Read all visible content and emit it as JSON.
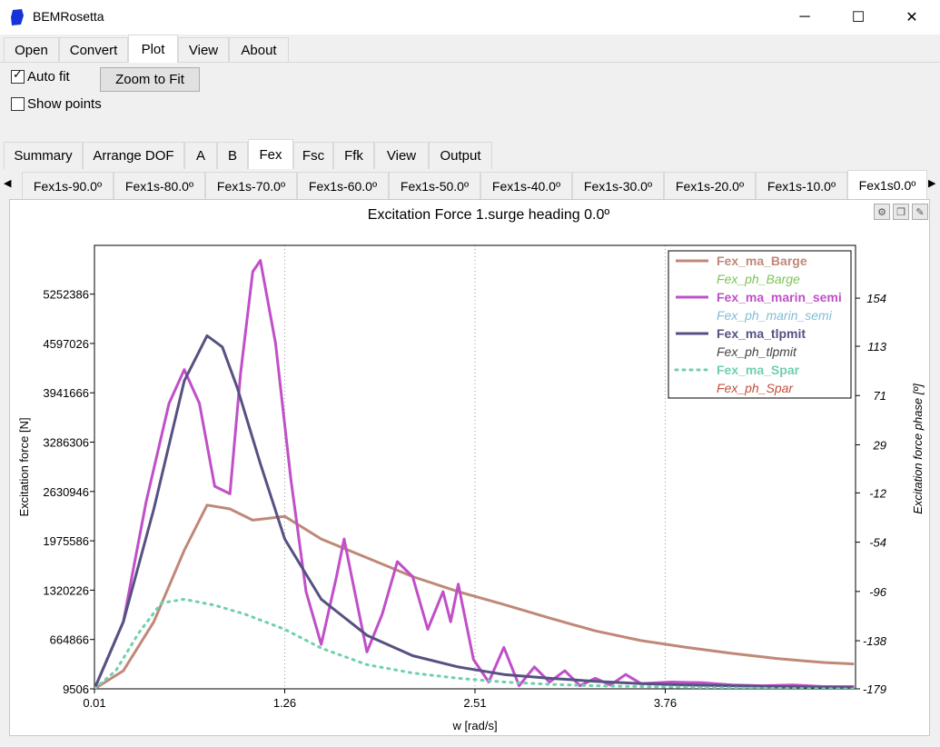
{
  "window": {
    "title": "BEMRosetta",
    "minimize": "─",
    "maximize": "☐",
    "close": "✕"
  },
  "menu": {
    "tabs": [
      "Open",
      "Convert",
      "Plot",
      "View",
      "About"
    ],
    "active": "Plot"
  },
  "options": {
    "auto_fit_label": "Auto fit",
    "auto_fit_checked": true,
    "show_points_label": "Show points",
    "show_points_checked": false,
    "zoom_button": "Zoom to Fit"
  },
  "tabs2": {
    "items": [
      "Summary",
      "Arrange DOF",
      "A",
      "B",
      "Fex",
      "Fsc",
      "Ffk",
      "View",
      "Output"
    ],
    "active": "Fex"
  },
  "tabs3": {
    "items": [
      "Fex1s-90.0º",
      "Fex1s-80.0º",
      "Fex1s-70.0º",
      "Fex1s-60.0º",
      "Fex1s-50.0º",
      "Fex1s-40.0º",
      "Fex1s-30.0º",
      "Fex1s-20.0º",
      "Fex1s-10.0º",
      "Fex1s0.0º"
    ],
    "active": "Fex1s0.0º"
  },
  "chart_data": {
    "type": "line",
    "title": "Excitation Force 1.surge heading 0.0º",
    "xlabel": "w [rad/s]",
    "ylabel": "Excitation force [N]",
    "y2label": "Excitation force phase [º]",
    "xlim": [
      0.01,
      5.01
    ],
    "ylim": [
      9506,
      5900000
    ],
    "y2lim": [
      -179,
      199
    ],
    "x_ticks": [
      "0.01",
      "1.26",
      "2.51",
      "3.76"
    ],
    "x_tick_values": [
      0.01,
      1.26,
      2.51,
      3.76
    ],
    "y_ticks": [
      "9506",
      "664866",
      "1320226",
      "1975586",
      "2630946",
      "3286306",
      "3941666",
      "4597026",
      "5252386"
    ],
    "y_tick_values": [
      9506,
      664866,
      1320226,
      1975586,
      2630946,
      3286306,
      3941666,
      4597026,
      5252386
    ],
    "y2_ticks": [
      "-179",
      "-138",
      "-96",
      "-54",
      "-12",
      "29",
      "71",
      "113",
      "154"
    ],
    "y2_tick_values": [
      -179,
      -138,
      -96,
      -54,
      -12,
      29,
      71,
      113,
      154
    ],
    "grid": true,
    "legend_position": "top-right",
    "legend": [
      {
        "name": "Fex_ma_Barge",
        "color": "#c08878",
        "style": "solid",
        "bold": true,
        "italic": false
      },
      {
        "name": "Fex_ph_Barge",
        "color": "#7dc456",
        "style": "none",
        "bold": false,
        "italic": true
      },
      {
        "name": "Fex_ma_marin_semi",
        "color": "#c04fc8",
        "style": "solid",
        "bold": true,
        "italic": false
      },
      {
        "name": "Fex_ph_marin_semi",
        "color": "#82bcd6",
        "style": "none",
        "bold": false,
        "italic": true
      },
      {
        "name": "Fex_ma_tlpmit",
        "color": "#555282",
        "style": "solid",
        "bold": true,
        "italic": false
      },
      {
        "name": "Fex_ph_tlpmit",
        "color": "#444444",
        "style": "none",
        "bold": false,
        "italic": true
      },
      {
        "name": "Fex_ma_Spar",
        "color": "#6fd0ac",
        "style": "dotted",
        "bold": true,
        "italic": false
      },
      {
        "name": "Fex_ph_Spar",
        "color": "#c0503c",
        "style": "none",
        "bold": false,
        "italic": true
      }
    ],
    "series": [
      {
        "name": "Fex_ma_Barge",
        "color": "#c08878",
        "style": "solid",
        "x": [
          0.01,
          0.2,
          0.4,
          0.6,
          0.75,
          0.9,
          1.05,
          1.26,
          1.5,
          1.8,
          2.1,
          2.4,
          2.7,
          3.0,
          3.3,
          3.6,
          3.9,
          4.2,
          4.5,
          4.8,
          5.0
        ],
        "y": [
          9506,
          250000,
          900000,
          1850000,
          2450000,
          2400000,
          2250000,
          2300000,
          2000000,
          1750000,
          1500000,
          1300000,
          1130000,
          950000,
          780000,
          650000,
          560000,
          480000,
          410000,
          360000,
          340000
        ]
      },
      {
        "name": "Fex_ma_marin_semi",
        "color": "#c04fc8",
        "style": "solid",
        "x": [
          0.01,
          0.2,
          0.35,
          0.5,
          0.6,
          0.7,
          0.8,
          0.9,
          0.97,
          1.05,
          1.1,
          1.2,
          1.3,
          1.4,
          1.5,
          1.6,
          1.65,
          1.7,
          1.8,
          1.9,
          2.0,
          2.1,
          2.2,
          2.3,
          2.35,
          2.4,
          2.5,
          2.6,
          2.7,
          2.8,
          2.9,
          3.0,
          3.1,
          3.2,
          3.3,
          3.4,
          3.5,
          3.6,
          3.8,
          4.0,
          4.2,
          4.4,
          4.6,
          4.8,
          5.0
        ],
        "y": [
          9506,
          900000,
          2500000,
          3800000,
          4250000,
          3800000,
          2700000,
          2600000,
          4200000,
          5550000,
          5700000,
          4600000,
          2800000,
          1300000,
          600000,
          1500000,
          2000000,
          1500000,
          500000,
          1000000,
          1700000,
          1500000,
          800000,
          1300000,
          900000,
          1400000,
          400000,
          100000,
          560000,
          50000,
          300000,
          100000,
          250000,
          50000,
          150000,
          60000,
          200000,
          80000,
          100000,
          90000,
          60000,
          50000,
          60000,
          40000,
          40000
        ]
      },
      {
        "name": "Fex_ma_tlpmit",
        "color": "#555282",
        "style": "solid",
        "x": [
          0.01,
          0.2,
          0.4,
          0.6,
          0.75,
          0.85,
          0.95,
          1.1,
          1.26,
          1.5,
          1.8,
          2.1,
          2.4,
          2.7,
          3.0,
          3.3,
          3.6,
          3.9,
          4.2,
          4.5,
          4.8,
          5.0
        ],
        "y": [
          9506,
          900000,
          2400000,
          4100000,
          4700000,
          4550000,
          4000000,
          3000000,
          2000000,
          1200000,
          720000,
          450000,
          300000,
          200000,
          150000,
          110000,
          80000,
          60000,
          50000,
          40000,
          30000,
          25000
        ]
      },
      {
        "name": "Fex_ma_Spar",
        "color": "#6fd0ac",
        "style": "dotted",
        "x": [
          0.01,
          0.15,
          0.3,
          0.45,
          0.6,
          0.8,
          1.0,
          1.26,
          1.5,
          1.8,
          2.1,
          2.4,
          2.7,
          3.0,
          3.3,
          3.6,
          3.9,
          4.2,
          4.5,
          4.8,
          5.0
        ],
        "y": [
          9506,
          250000,
          750000,
          1150000,
          1200000,
          1120000,
          1000000,
          800000,
          550000,
          330000,
          220000,
          150000,
          100000,
          70000,
          50000,
          40000,
          30000,
          20000,
          15000,
          10000,
          8000
        ]
      }
    ]
  }
}
